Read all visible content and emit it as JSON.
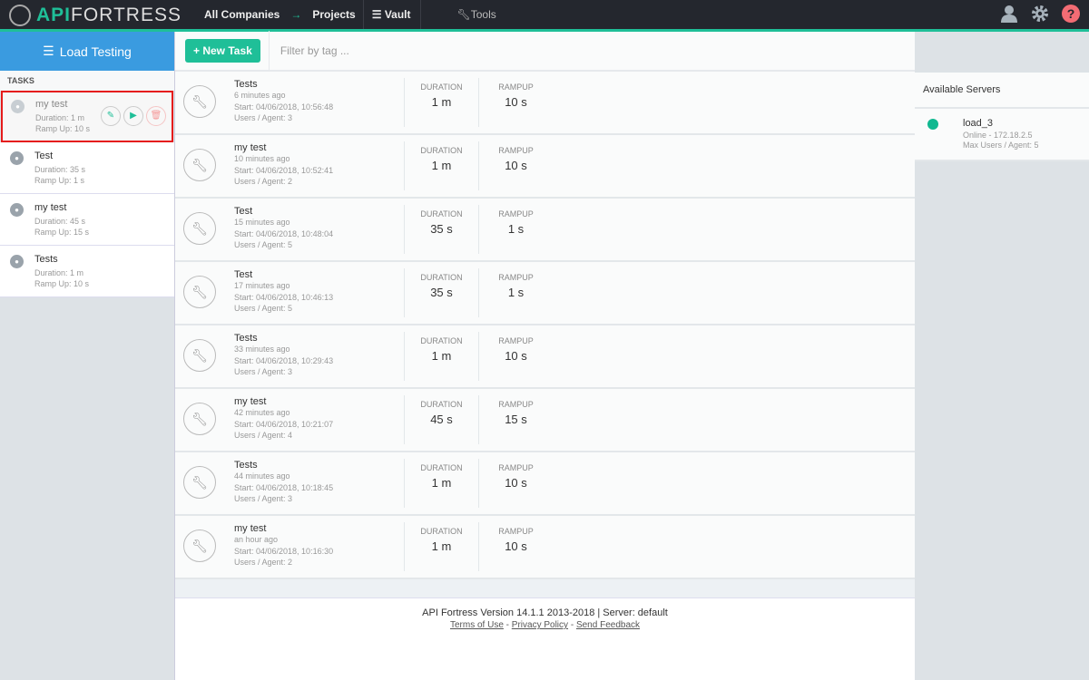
{
  "topbar": {
    "logo_api": "API",
    "logo_rest": "FORTRESS",
    "companies": "All Companies",
    "arrow": "→",
    "projects": "Projects",
    "vault": "Vault",
    "tools": "Tools"
  },
  "sidebar": {
    "title": "Load Testing",
    "tasks_label": "TASKS",
    "items": [
      {
        "name": "my test",
        "duration": "Duration: 1 m",
        "ramp": "Ramp Up: 10 s"
      },
      {
        "name": "Test",
        "duration": "Duration: 35 s",
        "ramp": "Ramp Up: 1 s"
      },
      {
        "name": "my test",
        "duration": "Duration: 45 s",
        "ramp": "Ramp Up: 15 s"
      },
      {
        "name": "Tests",
        "duration": "Duration: 1 m",
        "ramp": "Ramp Up: 10 s"
      }
    ]
  },
  "toolbar": {
    "new_task": "+ New Task",
    "filter_placeholder": "Filter by tag ..."
  },
  "runs": {
    "duration_label": "DURATION",
    "rampup_label": "RAMPUP",
    "items": [
      {
        "name": "Tests",
        "ago": "6 minutes ago",
        "start": "Start: 04/06/2018, 10:56:48",
        "users": "Users / Agent: 3",
        "duration": "1 m",
        "rampup": "10 s"
      },
      {
        "name": "my test",
        "ago": "10 minutes ago",
        "start": "Start: 04/06/2018, 10:52:41",
        "users": "Users / Agent: 2",
        "duration": "1 m",
        "rampup": "10 s"
      },
      {
        "name": "Test",
        "ago": "15 minutes ago",
        "start": "Start: 04/06/2018, 10:48:04",
        "users": "Users / Agent: 5",
        "duration": "35 s",
        "rampup": "1 s"
      },
      {
        "name": "Test",
        "ago": "17 minutes ago",
        "start": "Start: 04/06/2018, 10:46:13",
        "users": "Users / Agent: 5",
        "duration": "35 s",
        "rampup": "1 s"
      },
      {
        "name": "Tests",
        "ago": "33 minutes ago",
        "start": "Start: 04/06/2018, 10:29:43",
        "users": "Users / Agent: 3",
        "duration": "1 m",
        "rampup": "10 s"
      },
      {
        "name": "my test",
        "ago": "42 minutes ago",
        "start": "Start: 04/06/2018, 10:21:07",
        "users": "Users / Agent: 4",
        "duration": "45 s",
        "rampup": "15 s"
      },
      {
        "name": "Tests",
        "ago": "44 minutes ago",
        "start": "Start: 04/06/2018, 10:18:45",
        "users": "Users / Agent: 3",
        "duration": "1 m",
        "rampup": "10 s"
      },
      {
        "name": "my test",
        "ago": "an hour ago",
        "start": "Start: 04/06/2018, 10:16:30",
        "users": "Users / Agent: 2",
        "duration": "1 m",
        "rampup": "10 s"
      }
    ]
  },
  "servers": {
    "title": "Available Servers",
    "items": [
      {
        "name": "load_3",
        "status": "Online -  172.18.2.5",
        "max": "Max Users / Agent: 5",
        "color": "#10b890"
      }
    ]
  },
  "footer": {
    "version": "API Fortress Version 14.1.1 2013-2018 | Server: default",
    "terms": "Terms of Use",
    "sep": "-",
    "privacy": "Privacy Policy",
    "feedback": "Send Feedback"
  },
  "colors": {
    "accent": "#1fbf98",
    "header_blue": "#3a9be0",
    "selection": "#e51b1b"
  }
}
